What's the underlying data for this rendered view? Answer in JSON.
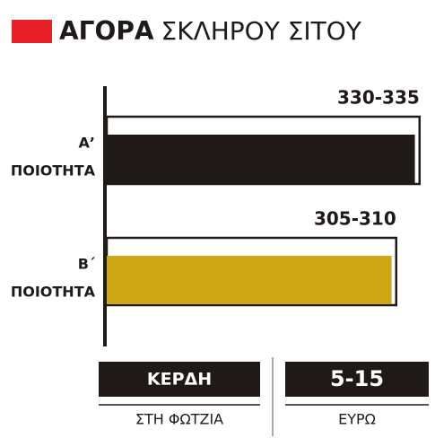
{
  "chart_data": {
    "type": "range-bar",
    "title": {
      "bold": "ΑΓΟΡΑ",
      "rest": "ΣΚΛΗΡΟΥ ΣΙΤΟΥ"
    },
    "xlim": [
      0,
      340
    ],
    "bars": [
      {
        "category_lines": [
          "Α’",
          "ΠΟΙΟΤΗΤΑ"
        ],
        "low": 330,
        "high": 335,
        "value_label": "330-335",
        "color": "#1f1a17"
      },
      {
        "category_lines": [
          "Β΄",
          "ΠΟΙΟΤΗΤΑ"
        ],
        "low": 305,
        "high": 310,
        "value_label": "305-310",
        "color": "#cda714"
      }
    ],
    "boxes": [
      {
        "top": "ΚΕΡΔΗ",
        "bottom": "ΣΤΗ ΦΩΤΖΙΑ"
      },
      {
        "top": "5-15",
        "bottom": "ΕΥΡΩ"
      }
    ]
  }
}
